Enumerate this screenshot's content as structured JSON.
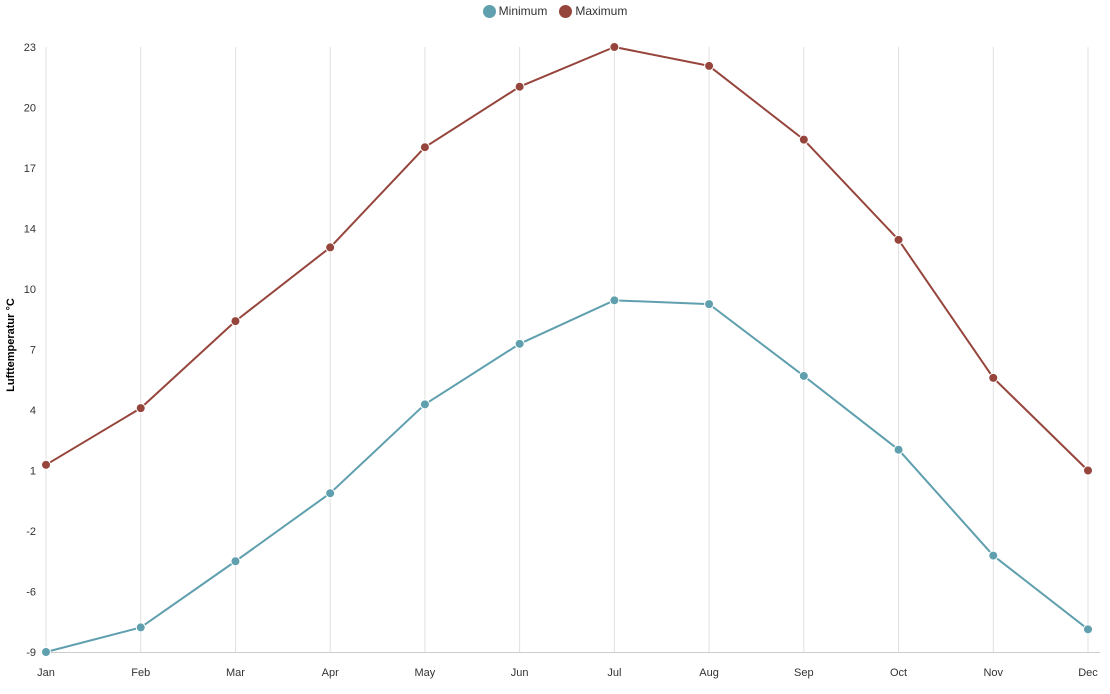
{
  "legend": {
    "position": "top-center",
    "items": [
      {
        "label": "Minimum",
        "color": "#5f9fae"
      },
      {
        "label": "Maximum",
        "color": "#96453c"
      }
    ]
  },
  "chart_data": {
    "type": "line",
    "title": "",
    "xlabel": "",
    "ylabel": "Lufttemperatur °C",
    "categories": [
      "Jan",
      "Feb",
      "Mar",
      "Apr",
      "May",
      "Jun",
      "Jul",
      "Aug",
      "Sep",
      "Oct",
      "Nov",
      "Dec"
    ],
    "yticks": [
      "23",
      "20",
      "17",
      "14",
      "10",
      "7",
      "4",
      "1",
      "-2",
      "-6",
      "-9"
    ],
    "ylim": [
      -9,
      23
    ],
    "grid": "vertical",
    "series": [
      {
        "name": "Minimum",
        "color": "#5f9fae",
        "values": [
          -9.0,
          -7.7,
          -4.2,
          -0.6,
          4.1,
          7.3,
          9.6,
          9.4,
          5.6,
          1.7,
          -3.9,
          -7.8
        ]
      },
      {
        "name": "Maximum",
        "color": "#96453c",
        "values": [
          0.9,
          3.9,
          8.5,
          12.4,
          17.7,
          20.9,
          23.0,
          22.0,
          18.1,
          12.8,
          5.5,
          0.6
        ]
      }
    ]
  }
}
